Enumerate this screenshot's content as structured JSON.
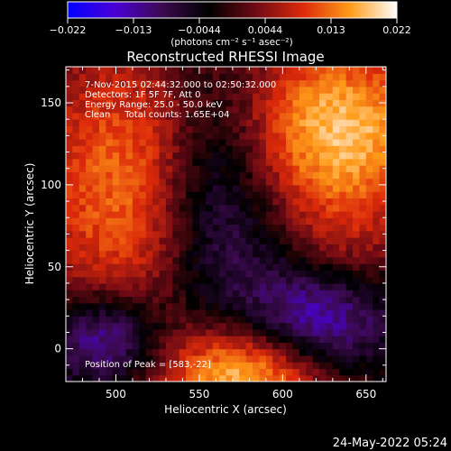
{
  "colorbar": {
    "ticks": [
      "−0.022",
      "−0.013",
      "−0.0044",
      "0.0044",
      "0.013",
      "0.022"
    ],
    "units": "(photons cm⁻² s⁻¹ asec⁻²)",
    "colors": [
      "#0000ff",
      "#4b00d8",
      "#3c0a50",
      "#000000",
      "#6e0a14",
      "#dc2a0a",
      "#ff9b19",
      "#ffffff"
    ]
  },
  "chart_data": {
    "type": "heatmap",
    "title": "Reconstructed RHESSI Image",
    "xlabel": "Heliocentric X (arcsec)",
    "ylabel": "Heliocentric Y (arcsec)",
    "xlim": [
      470,
      662
    ],
    "ylim": [
      -20,
      172
    ],
    "xticks": [
      500,
      550,
      600,
      650
    ],
    "yticks": [
      0,
      50,
      100,
      150
    ],
    "annotations": [
      "7-Nov-2015 02:44:32.000 to 02:50:32.000",
      "Detectors: 1F 5F 7F, Att 0",
      "Energy Range: 25.0 - 50.0 keV",
      "Clean     Total counts: 1.65E+04"
    ],
    "peak_label": "Position of Peak = [583,-22]",
    "peak": [
      583,
      -22
    ],
    "sources": [
      {
        "x": 505,
        "y": 100,
        "sx": 45,
        "sy": 70,
        "amp": 0.016
      },
      {
        "x": 635,
        "y": 135,
        "sx": 45,
        "sy": 40,
        "amp": 0.021
      },
      {
        "x": 580,
        "y": -15,
        "sx": 40,
        "sy": 22,
        "amp": 0.022
      },
      {
        "x": 640,
        "y": 60,
        "sx": 25,
        "sy": 30,
        "amp": 0.006
      },
      {
        "x": 560,
        "y": 95,
        "sx": 25,
        "sy": 55,
        "amp": -0.013
      },
      {
        "x": 620,
        "y": 15,
        "sx": 30,
        "sy": 25,
        "amp": -0.016
      },
      {
        "x": 495,
        "y": 5,
        "sx": 25,
        "sy": 20,
        "amp": -0.016
      }
    ]
  },
  "timestamp": "24-May-2022 05:24"
}
